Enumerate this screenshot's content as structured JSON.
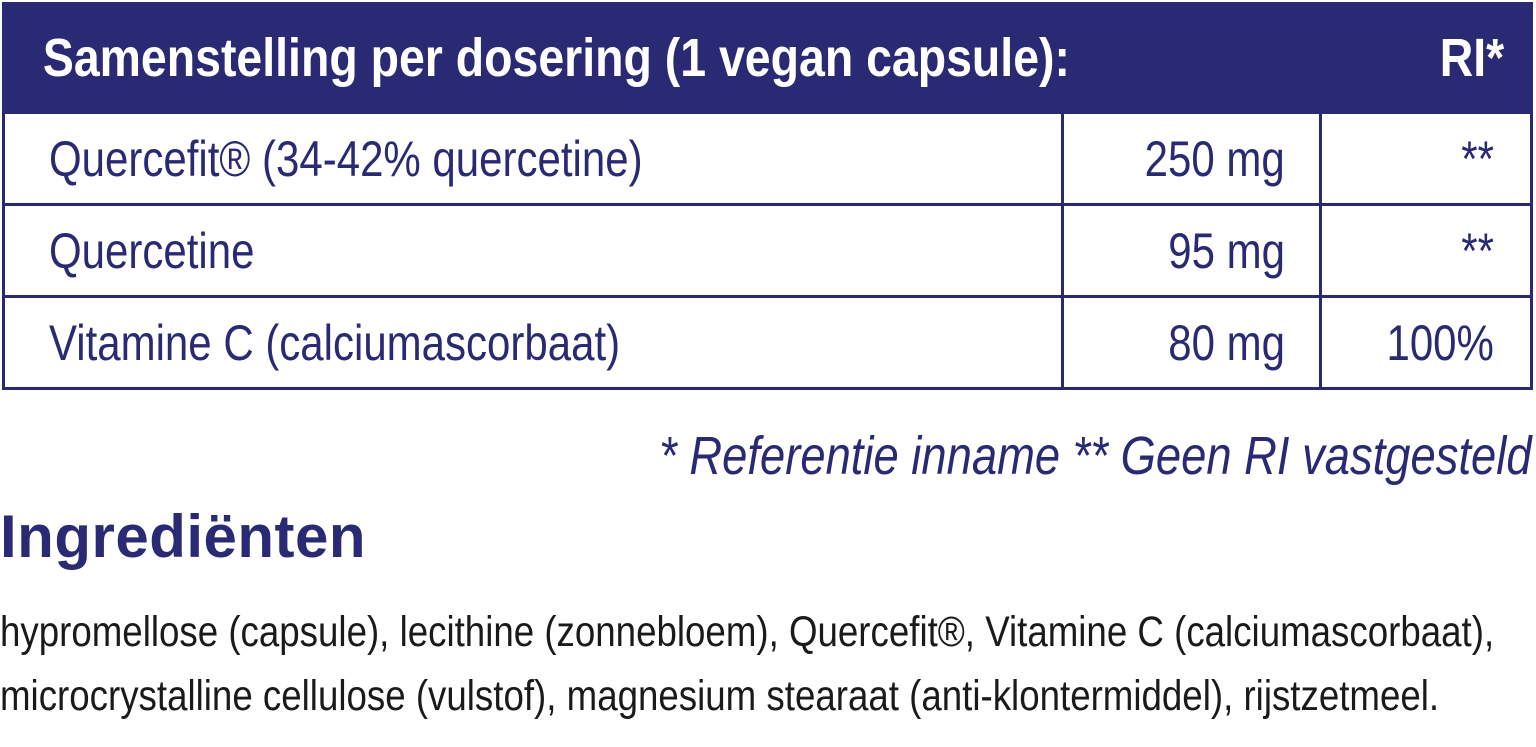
{
  "table": {
    "header": {
      "title": "Samenstelling per dosering (1 vegan capsule):",
      "ri": "RI*"
    },
    "rows": [
      {
        "name": "Quercefit® (34-42% quercetine)",
        "amount": "250 mg",
        "ri": "**"
      },
      {
        "name": "Quercetine",
        "amount": "95 mg",
        "ri": "**"
      },
      {
        "name": "Vitamine C (calciumascorbaat)",
        "amount": "80 mg",
        "ri": "100%"
      }
    ]
  },
  "footnote": "* Referentie inname  ** Geen RI vastgesteld",
  "ingredients": {
    "heading": "Ingrediënten",
    "line1": "hypromellose (capsule), lecithine (zonnebloem), Quercefit®, Vitamine C (calciumascorbaat),",
    "line2": "microcrystalline cellulose (vulstof), magnesium stearaat (anti-klontermiddel), rijstzetmeel."
  },
  "colors": {
    "brand": "#2a2a74",
    "text": "#1a1a1a"
  }
}
